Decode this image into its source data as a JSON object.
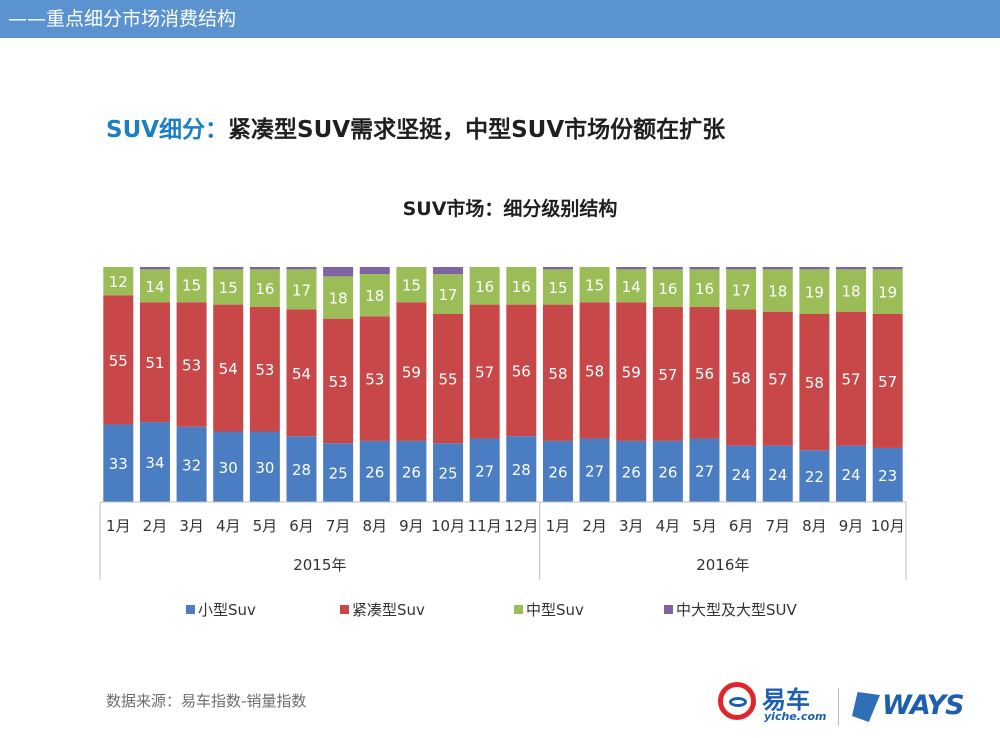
{
  "header": {
    "section_title": "——重点细分市场消费结构"
  },
  "headline": {
    "prefix": "SUV细分：",
    "text": "紧凑型SUV需求坚挺，中型SUV市场份额在扩张"
  },
  "chart_data": {
    "type": "bar",
    "stacked": true,
    "percent": true,
    "title": "SUV市场：细分级别结构",
    "categories": [
      "1月",
      "2月",
      "3月",
      "4月",
      "5月",
      "6月",
      "7月",
      "8月",
      "9月",
      "10月",
      "11月",
      "12月",
      "1月",
      "2月",
      "3月",
      "4月",
      "5月",
      "6月",
      "7月",
      "8月",
      "9月",
      "10月"
    ],
    "groups": [
      {
        "label": "2015年",
        "start": 0,
        "end": 11
      },
      {
        "label": "2016年",
        "start": 12,
        "end": 21
      }
    ],
    "series": [
      {
        "name": "小型Suv",
        "color": "#4a7dc1",
        "values": [
          33,
          34,
          32,
          30,
          30,
          28,
          25,
          26,
          26,
          25,
          27,
          28,
          26,
          27,
          26,
          26,
          27,
          24,
          24,
          22,
          24,
          23
        ]
      },
      {
        "name": "紧凑型Suv",
        "color": "#c8484a",
        "values": [
          55,
          51,
          53,
          54,
          53,
          54,
          53,
          53,
          59,
          55,
          57,
          56,
          58,
          58,
          59,
          57,
          56,
          58,
          57,
          58,
          57,
          57
        ]
      },
      {
        "name": "中型Suv",
        "color": "#9bbd57",
        "values": [
          12,
          14,
          15,
          15,
          16,
          17,
          18,
          18,
          15,
          17,
          16,
          16,
          15,
          15,
          14,
          16,
          16,
          17,
          18,
          19,
          18,
          19
        ]
      },
      {
        "name": "中大型及大型SUV",
        "color": "#8064a2",
        "values": [
          0,
          1,
          0,
          1,
          1,
          1,
          4,
          3,
          0,
          3,
          0,
          0,
          1,
          0,
          1,
          1,
          1,
          1,
          1,
          1,
          1,
          1
        ]
      }
    ],
    "ylim": [
      0,
      100
    ],
    "legend_position": "bottom"
  },
  "footer": {
    "source": "数据来源：易车指数-销量指数",
    "logo1_cn": "易车",
    "logo1_en": "yiche.com",
    "logo2": "WAYS"
  }
}
